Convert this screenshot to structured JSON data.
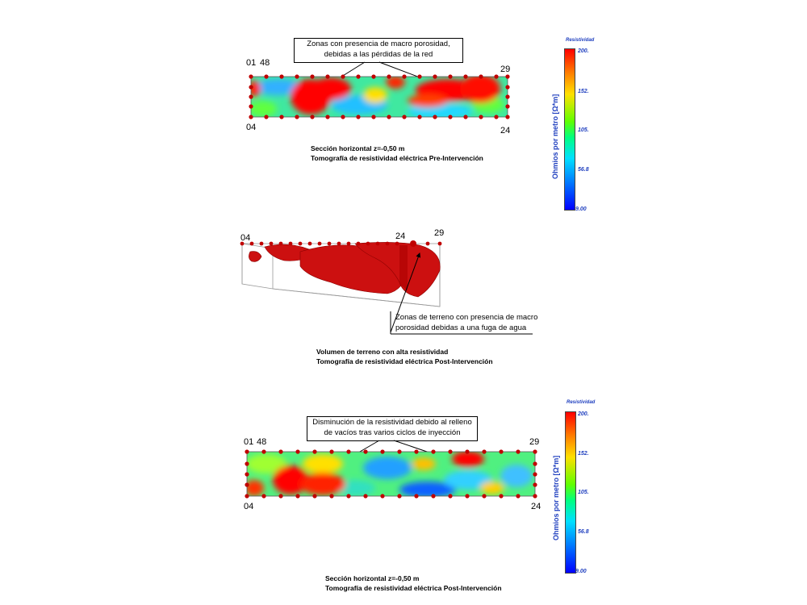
{
  "section1": {
    "callout": [
      "Zonas con presencia de macro porosidad,",
      "debidas a las pérdidas de la red"
    ],
    "corner_labels": {
      "top_left": "01",
      "top_left2": "48",
      "top_right": "29",
      "bottom_left": "04",
      "bottom_right": "24"
    },
    "caption": [
      "Sección horizontal z=-0,50 m",
      "Tomografía de resistividad eléctrica Pre-Intervención"
    ]
  },
  "section2": {
    "corner_labels": {
      "left": "04",
      "middle": "24",
      "right": "29"
    },
    "callout": [
      "Zonas de terreno con presencia de macro",
      "porosidad debidas a una fuga de agua"
    ],
    "caption": [
      "Volumen de terreno con alta resistividad",
      "Tomografía de resistividad eléctrica Post-Intervención"
    ]
  },
  "section3": {
    "callout": [
      "Disminución de la resistividad debido al relleno",
      "de vacíos tras varios ciclos de inyección"
    ],
    "corner_labels": {
      "top_left": "01",
      "top_left2": "48",
      "top_right": "29",
      "bottom_left": "04",
      "bottom_right": "24"
    },
    "caption": [
      "Sección horizontal z=-0,50 m",
      "Tomografía de resistividad eléctrica Post-Intervención"
    ]
  },
  "legend": {
    "title": "Resistividad",
    "axis_label": "Ohmios por metro [Ω*m]",
    "ticks": [
      "200.",
      "152.",
      "105.",
      "56.8",
      "9.00"
    ]
  },
  "colors": {
    "high": "#ff0000",
    "mid": "#00ff80",
    "low": "#0000ff",
    "electrode": "#c00000"
  }
}
